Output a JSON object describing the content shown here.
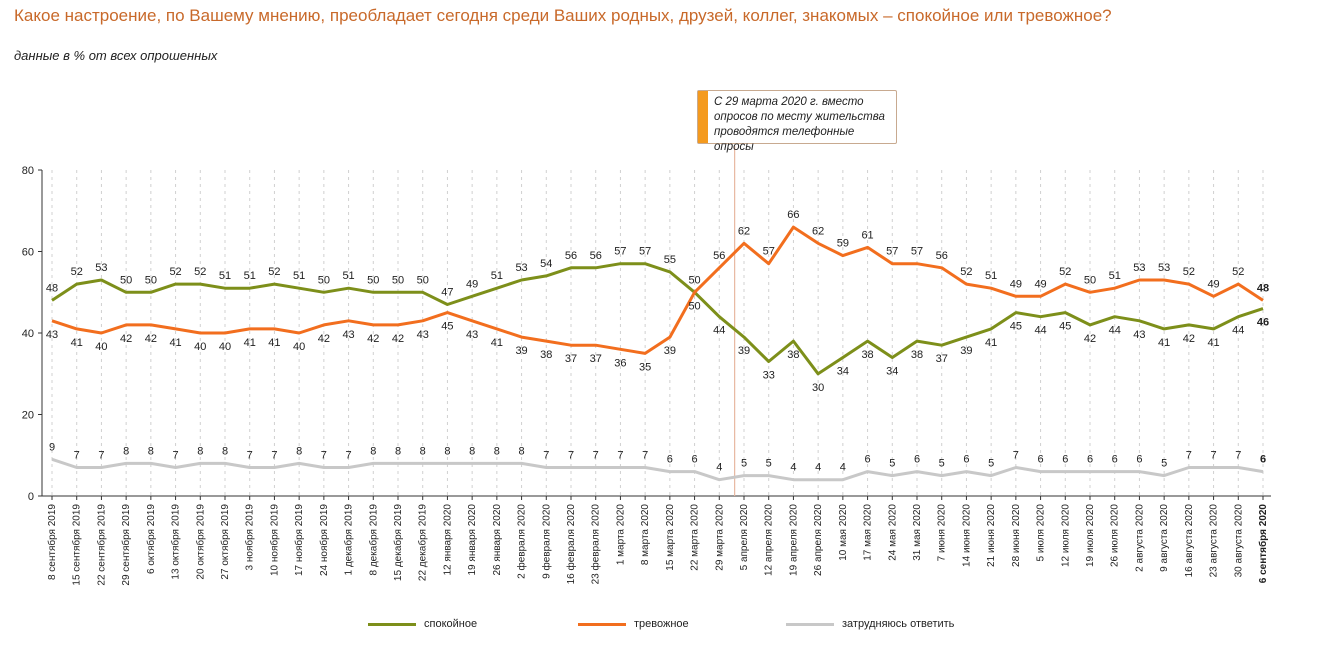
{
  "title": "Какое настроение, по Вашему мнению, преобладает сегодня среди Ваших родных, друзей, коллег, знакомых – спокойное или тревожное?",
  "subtitle": "данные в % от всех опрошенных",
  "annotation": "С 29 марта 2020 г. вместо опросов по месту жительства проводятся телефонные опросы",
  "colors": {
    "calm": "#7d8f1a",
    "anxious": "#f26e1e",
    "unsure": "#c8c8c8",
    "marker": "#e8b8a0",
    "grid": "#d0d0d0"
  },
  "chart_data": {
    "type": "line",
    "title": "Какое настроение, по Вашему мнению, преобладает сегодня среди Ваших родных, друзей, коллег, знакомых – спокойное или тревожное?",
    "ylabel": "%",
    "ylim": [
      0,
      80
    ],
    "yticks": [
      0,
      20,
      40,
      60,
      80
    ],
    "grid": "vertical-dashed",
    "marker_after_index": 28,
    "categories": [
      "8 сентября 2019",
      "15 сентября 2019",
      "22 сентября 2019",
      "29 сентября 2019",
      "6 октября 2019",
      "13 октября 2019",
      "20 октября 2019",
      "27 октября 2019",
      "3 ноября 2019",
      "10 ноября 2019",
      "17 ноября 2019",
      "24 ноября 2019",
      "1 декабря 2019",
      "8 декабря 2019",
      "15 декабря 2019",
      "22 декабря 2019",
      "12 января 2020",
      "19 января 2020",
      "26 января 2020",
      "2 февраля 2020",
      "9 февраля 2020",
      "16 февраля 2020",
      "23 февраля 2020",
      "1 марта 2020",
      "8 марта 2020",
      "15 марта 2020",
      "22 марта 2020",
      "29 марта 2020",
      "5 апреля 2020",
      "12 апреля 2020",
      "19 апреля 2020",
      "26 апреля 2020",
      "10 мая 2020",
      "17 мая 2020",
      "24 мая 2020",
      "31 мая 2020",
      "7 июня 2020",
      "14 июня 2020",
      "21 июня 2020",
      "28 июня 2020",
      "5 июля 2020",
      "12 июля 2020",
      "19 июля 2020",
      "26 июля 2020",
      "2 августа 2020",
      "9 августа 2020",
      "16 августа 2020",
      "23 августа 2020",
      "30 августа 2020",
      "6 сентября 2020"
    ],
    "series": [
      {
        "name": "спокойное",
        "key": "calm",
        "values": [
          48,
          52,
          53,
          50,
          50,
          52,
          52,
          51,
          51,
          52,
          51,
          50,
          51,
          50,
          50,
          50,
          47,
          49,
          51,
          53,
          54,
          56,
          56,
          57,
          57,
          55,
          50,
          44,
          39,
          33,
          38,
          30,
          34,
          38,
          34,
          38,
          37,
          39,
          41,
          45,
          44,
          45,
          42,
          44,
          43,
          41,
          42,
          41,
          44,
          46
        ]
      },
      {
        "name": "тревожное",
        "key": "anxious",
        "values": [
          43,
          41,
          40,
          42,
          42,
          41,
          40,
          40,
          41,
          41,
          40,
          42,
          43,
          42,
          42,
          43,
          45,
          43,
          41,
          39,
          38,
          37,
          37,
          36,
          35,
          39,
          50,
          56,
          62,
          57,
          66,
          62,
          59,
          61,
          57,
          57,
          56,
          52,
          51,
          49,
          49,
          52,
          50,
          51,
          53,
          53,
          52,
          49,
          52,
          48
        ]
      },
      {
        "name": "затрудняюсь ответить",
        "key": "unsure",
        "values": [
          9,
          7,
          7,
          8,
          8,
          7,
          8,
          8,
          7,
          7,
          8,
          7,
          7,
          8,
          8,
          8,
          8,
          8,
          8,
          8,
          7,
          7,
          7,
          7,
          7,
          6,
          6,
          4,
          5,
          5,
          4,
          4,
          4,
          6,
          5,
          6,
          5,
          6,
          5,
          7,
          6,
          6,
          6,
          6,
          6,
          5,
          7,
          7,
          7,
          6
        ]
      }
    ],
    "label_values": {
      "calm": [
        "48",
        "52",
        "53",
        "50",
        "50",
        "52",
        "52",
        "51",
        "51",
        "52",
        "51",
        "50",
        "51",
        "50",
        "50",
        "50",
        "47",
        "49",
        "51",
        "53",
        "54",
        "56",
        "56",
        "57",
        "57",
        "55",
        "50",
        "44",
        "39",
        "33",
        "38",
        "30",
        "34",
        "38",
        "34",
        "38",
        "37",
        "39",
        "41",
        "45",
        "44",
        "45",
        "42",
        "44",
        "43",
        "41",
        "42",
        "41",
        "44",
        "46"
      ],
      "anxious": [
        "43",
        "41",
        "40",
        "42",
        "42",
        "41",
        "40",
        "40",
        "41",
        "41",
        "40",
        "42",
        "43",
        "42",
        "42",
        "43",
        "45",
        "43",
        "41",
        "39",
        "38",
        "37",
        "37",
        "36",
        "35",
        "39",
        "50",
        "56",
        "62",
        "57",
        "66",
        "62",
        "59",
        "61",
        "57",
        "57",
        "56",
        "52",
        "51",
        "49",
        "49",
        "52",
        "50",
        "51",
        "53",
        "53",
        "52",
        "49",
        "52",
        "48"
      ],
      "unsure": [
        "9",
        "7",
        "7",
        "8",
        "8",
        "7",
        "8",
        "8",
        "7",
        "7",
        "8",
        "7",
        "7",
        "8",
        "8",
        "8",
        "8",
        "8",
        "8",
        "8",
        "7",
        "7",
        "7",
        "7",
        "7",
        "6",
        "6",
        "4",
        "5",
        "5",
        "4",
        "4",
        "4",
        "6",
        "5",
        "6",
        "5",
        "6",
        "5",
        "7",
        "6",
        "6",
        "6",
        "6",
        "6",
        "5",
        "7",
        "7",
        "7",
        "6"
      ]
    }
  },
  "legend": [
    {
      "label": "спокойное",
      "key": "calm"
    },
    {
      "label": "тревожное",
      "key": "anxious"
    },
    {
      "label": "затрудняюсь ответить",
      "key": "unsure"
    }
  ]
}
